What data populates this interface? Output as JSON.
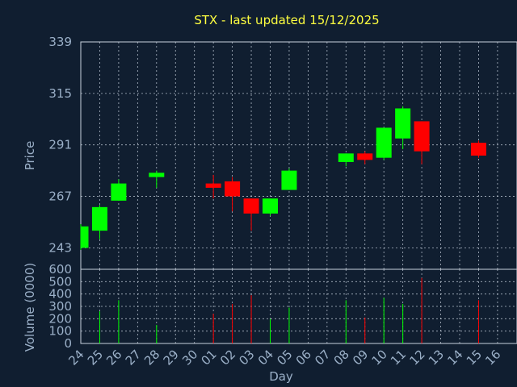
{
  "chart_data": {
    "type": "candlestick",
    "title": "STX - last updated 15/12/2025",
    "xlabel": "Day",
    "ylabel_price": "Price",
    "ylabel_volume": "Volume (0000)",
    "price_ticks": [
      243,
      267,
      291,
      315,
      339
    ],
    "price_ylim": [
      233,
      339
    ],
    "volume_ticks": [
      0,
      100,
      200,
      300,
      400,
      500,
      600
    ],
    "volume_ylim": [
      0,
      600
    ],
    "x_tick_labels": [
      "24",
      "25",
      "26",
      "27",
      "28",
      "29",
      "30",
      "01",
      "02",
      "03",
      "04",
      "05",
      "06",
      "07",
      "08",
      "09",
      "10",
      "11",
      "12",
      "13",
      "14",
      "15",
      "16"
    ],
    "grid": true,
    "colors": {
      "up": "#00ff00",
      "down": "#ff0000",
      "background": "#101e30",
      "title": "#ffff40",
      "axis_text": "#9bb0c8"
    },
    "candles": [
      {
        "day": "24",
        "open": 243,
        "close": 253,
        "high": 254,
        "low": 242,
        "volume": 0
      },
      {
        "day": "25",
        "open": 251,
        "close": 262,
        "high": 263,
        "low": 247,
        "volume": 260
      },
      {
        "day": "26",
        "open": 265,
        "close": 273,
        "high": 275,
        "low": 265,
        "volume": 350
      },
      {
        "day": "28",
        "open": 276,
        "close": 278,
        "high": 279,
        "low": 271,
        "volume": 150
      },
      {
        "day": "01",
        "open": 273,
        "close": 271,
        "high": 277,
        "low": 266,
        "volume": 240
      },
      {
        "day": "02",
        "open": 274,
        "close": 267,
        "high": 276,
        "low": 260,
        "volume": 320
      },
      {
        "day": "03",
        "open": 266,
        "close": 259,
        "high": 266,
        "low": 251,
        "volume": 390
      },
      {
        "day": "04",
        "open": 259,
        "close": 266,
        "high": 266,
        "low": 258,
        "volume": 200
      },
      {
        "day": "05",
        "open": 270,
        "close": 279,
        "high": 280,
        "low": 270,
        "volume": 290
      },
      {
        "day": "08",
        "open": 283,
        "close": 287,
        "high": 287,
        "low": 281,
        "volume": 350
      },
      {
        "day": "09",
        "open": 287,
        "close": 284,
        "high": 288,
        "low": 282,
        "volume": 210
      },
      {
        "day": "10",
        "open": 285,
        "close": 299,
        "high": 299,
        "low": 284,
        "volume": 370
      },
      {
        "day": "11",
        "open": 294,
        "close": 308,
        "high": 309,
        "low": 289,
        "volume": 320
      },
      {
        "day": "12",
        "open": 302,
        "close": 288,
        "high": 302,
        "low": 282,
        "volume": 530
      },
      {
        "day": "15",
        "open": 292,
        "close": 286,
        "high": 293,
        "low": 285,
        "volume": 350
      }
    ]
  }
}
